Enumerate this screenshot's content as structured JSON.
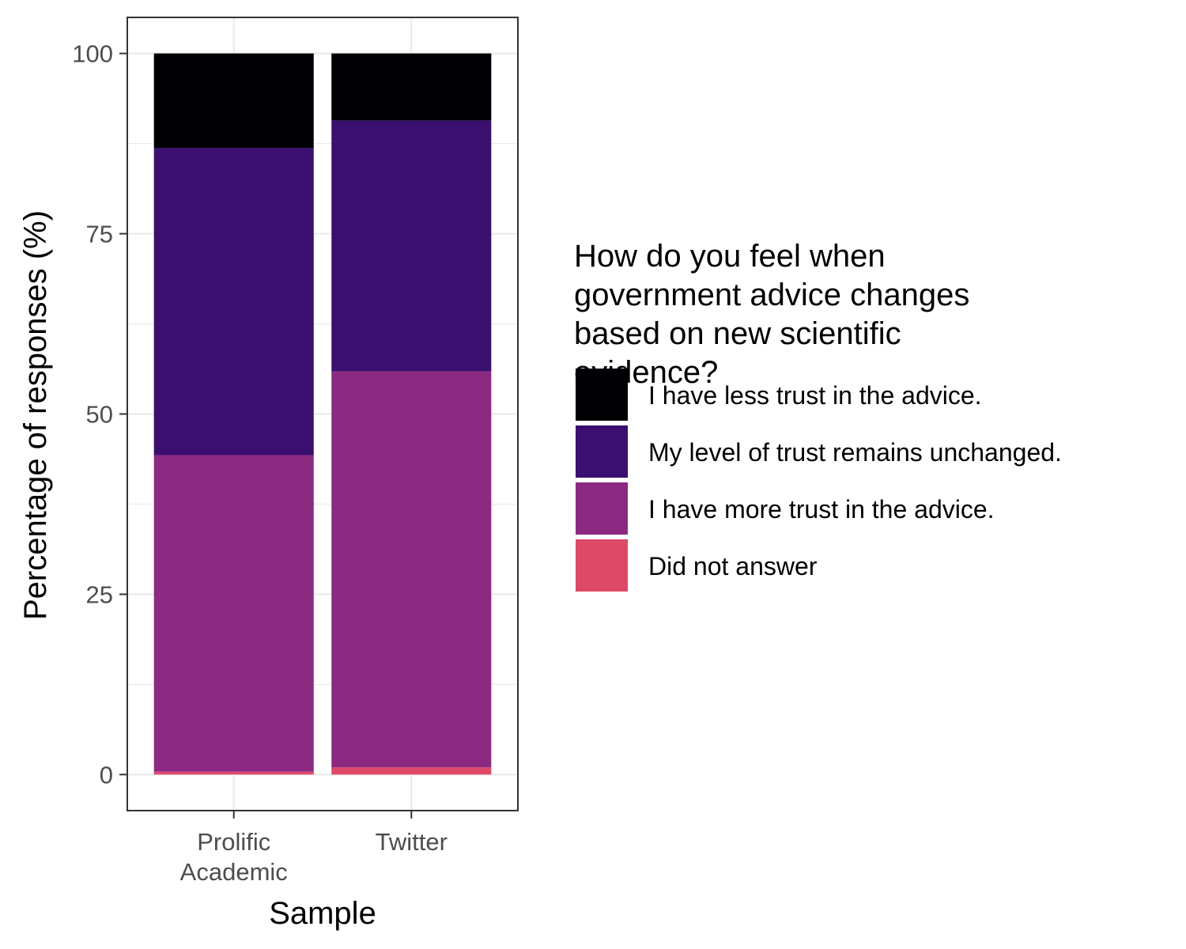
{
  "chart_data": {
    "type": "bar",
    "stacked": true,
    "title": "",
    "xlabel": "Sample",
    "ylabel": "Percentage of responses (%)",
    "ylim": [
      -5,
      105
    ],
    "yticks": [
      0,
      25,
      50,
      75,
      100
    ],
    "grid": true,
    "legend_position": "right",
    "legend_title": "How do you feel when government advice changes based on new scientific evidence?",
    "categories": [
      [
        "Prolific",
        "Academic"
      ],
      [
        "Twitter"
      ]
    ],
    "series": [
      {
        "name": "Did not answer",
        "color": "#de4968",
        "values": [
          0.4,
          1.0
        ]
      },
      {
        "name": "I have more trust in the advice.",
        "color": "#8c2981",
        "values": [
          43.9,
          54.9
        ]
      },
      {
        "name": "My level of trust remains unchanged.",
        "color": "#3b0f70",
        "values": [
          42.6,
          34.8
        ]
      },
      {
        "name": "I have less trust in the advice.",
        "color": "#000004",
        "values": [
          13.1,
          9.3
        ]
      }
    ]
  }
}
